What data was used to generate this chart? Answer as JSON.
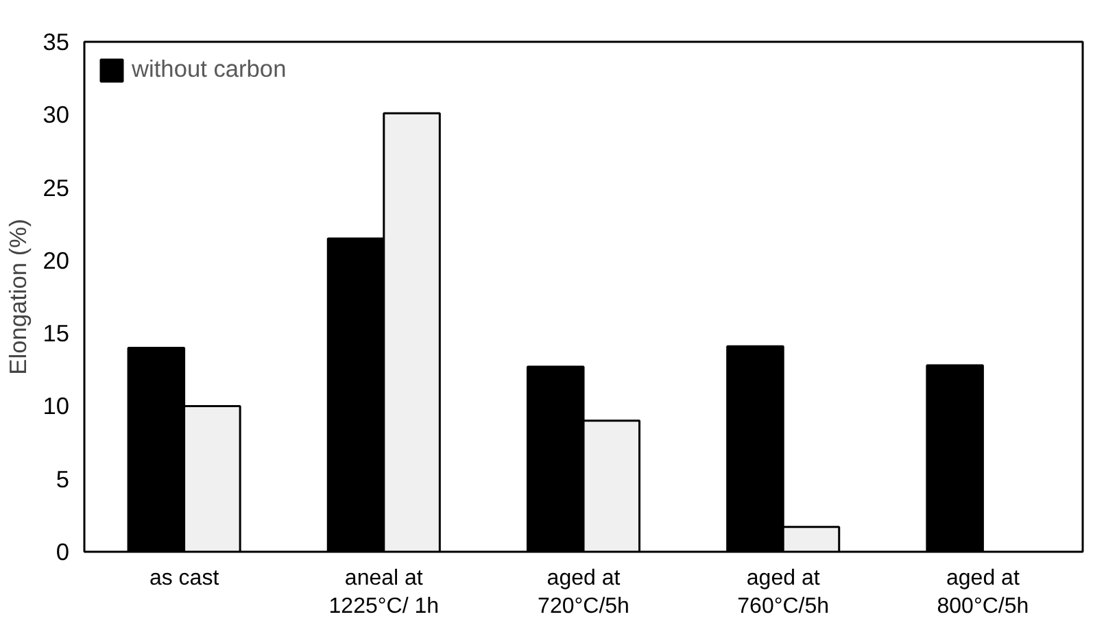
{
  "chart_data": {
    "type": "bar",
    "ylabel": "Elongation (%)",
    "categories": [
      "as cast",
      "aneal at\n1225°C/ 1h",
      "aged at\n720°C/5h",
      "aged at\n760°C/5h",
      "aged at\n800°C/5h"
    ],
    "series": [
      {
        "name": "without carbon",
        "color": "#000000",
        "values": [
          14,
          21.5,
          12.7,
          14.1,
          12.8
        ]
      },
      {
        "color": "#f0f0f0",
        "values": [
          10,
          30.1,
          9,
          1.7,
          null
        ]
      }
    ],
    "ylim": [
      0,
      35
    ],
    "yticks": [
      0,
      5,
      10,
      15,
      20,
      25,
      30,
      35
    ],
    "grid": false,
    "legend": "top left"
  }
}
